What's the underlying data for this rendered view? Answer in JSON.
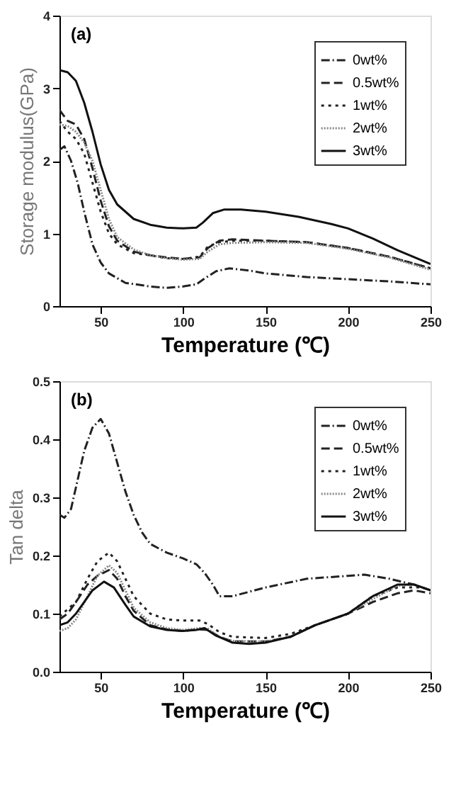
{
  "chart_data": [
    {
      "type": "line",
      "annotations": [
        "(a)"
      ],
      "xlabel": "Temperature (℃)",
      "ylabel": "Storage modulus(GPa)",
      "xlim": [
        25,
        250
      ],
      "xticks": [
        50,
        100,
        150,
        200,
        250
      ],
      "ylim": [
        0,
        4
      ],
      "yticks": [
        0,
        1,
        2,
        3,
        4
      ],
      "grid": false,
      "legend": "top right",
      "series": [
        {
          "name": "0wt%",
          "color": "#222222",
          "line_style": "dashdot",
          "x": [
            25,
            28,
            32,
            36,
            40,
            45,
            50,
            55,
            65,
            80,
            90,
            100,
            108,
            113,
            120,
            128,
            140,
            150,
            175,
            200,
            225,
            250
          ],
          "values": [
            2.15,
            2.2,
            2.0,
            1.7,
            1.3,
            0.85,
            0.6,
            0.45,
            0.32,
            0.27,
            0.25,
            0.27,
            0.3,
            0.38,
            0.48,
            0.52,
            0.49,
            0.45,
            0.4,
            0.37,
            0.34,
            0.3
          ]
        },
        {
          "name": "0.5wt%",
          "color": "#222222",
          "line_style": "dashed",
          "x": [
            25,
            30,
            35,
            40,
            45,
            50,
            55,
            60,
            70,
            80,
            90,
            100,
            110,
            115,
            122,
            130,
            150,
            175,
            200,
            225,
            250
          ],
          "values": [
            2.7,
            2.55,
            2.5,
            2.3,
            1.9,
            1.45,
            1.1,
            0.9,
            0.75,
            0.7,
            0.67,
            0.65,
            0.67,
            0.8,
            0.9,
            0.92,
            0.9,
            0.88,
            0.8,
            0.68,
            0.52
          ]
        },
        {
          "name": "1wt%",
          "color": "#222222",
          "line_style": "dotted",
          "x": [
            25,
            30,
            35,
            40,
            45,
            50,
            55,
            60,
            70,
            80,
            90,
            100,
            110,
            115,
            122,
            130,
            150,
            175,
            200,
            225,
            250
          ],
          "values": [
            2.55,
            2.4,
            2.3,
            2.1,
            1.7,
            1.3,
            1.0,
            0.85,
            0.73,
            0.7,
            0.66,
            0.65,
            0.68,
            0.82,
            0.88,
            0.9,
            0.9,
            0.88,
            0.8,
            0.68,
            0.52
          ]
        },
        {
          "name": "2wt%",
          "color": "#888888",
          "line_style": "finedot",
          "x": [
            25,
            30,
            35,
            40,
            45,
            50,
            55,
            60,
            70,
            80,
            90,
            100,
            110,
            115,
            122,
            130,
            150,
            175,
            200,
            225,
            250
          ],
          "values": [
            2.5,
            2.48,
            2.4,
            2.25,
            2.0,
            1.6,
            1.2,
            0.95,
            0.78,
            0.7,
            0.66,
            0.64,
            0.65,
            0.75,
            0.85,
            0.87,
            0.88,
            0.87,
            0.79,
            0.67,
            0.5
          ]
        },
        {
          "name": "3wt%",
          "color": "#111111",
          "line_style": "solid",
          "x": [
            25,
            30,
            35,
            40,
            45,
            50,
            55,
            60,
            70,
            80,
            90,
            100,
            108,
            112,
            118,
            125,
            135,
            150,
            170,
            190,
            200,
            215,
            230,
            250
          ],
          "values": [
            3.25,
            3.22,
            3.1,
            2.8,
            2.4,
            1.95,
            1.6,
            1.4,
            1.2,
            1.12,
            1.08,
            1.07,
            1.08,
            1.15,
            1.28,
            1.33,
            1.33,
            1.3,
            1.23,
            1.13,
            1.07,
            0.93,
            0.77,
            0.58
          ]
        }
      ]
    },
    {
      "type": "line",
      "annotations": [
        "(b)"
      ],
      "xlabel": "Temperature (℃)",
      "ylabel": "Tan delta",
      "xlim": [
        25,
        250
      ],
      "xticks": [
        50,
        100,
        150,
        200,
        250
      ],
      "ylim": [
        0,
        0.5
      ],
      "yticks": [
        {
          "value": 0,
          "label": "0.0"
        },
        0.1,
        0.2,
        0.3,
        0.4,
        0.5
      ],
      "grid": false,
      "legend": "top right",
      "series": [
        {
          "name": "0wt%",
          "color": "#222222",
          "line_style": "dashdot",
          "x": [
            25,
            28,
            32,
            36,
            40,
            45,
            50,
            55,
            60,
            65,
            70,
            75,
            80,
            90,
            100,
            108,
            113,
            118,
            122,
            130,
            150,
            175,
            200,
            210,
            225,
            240,
            250
          ],
          "values": [
            0.27,
            0.265,
            0.28,
            0.33,
            0.38,
            0.42,
            0.435,
            0.41,
            0.36,
            0.31,
            0.27,
            0.24,
            0.22,
            0.205,
            0.195,
            0.185,
            0.17,
            0.15,
            0.13,
            0.13,
            0.145,
            0.16,
            0.165,
            0.167,
            0.16,
            0.15,
            0.14
          ]
        },
        {
          "name": "0.5wt%",
          "color": "#222222",
          "line_style": "dashed",
          "x": [
            25,
            30,
            35,
            42,
            48,
            55,
            60,
            65,
            70,
            80,
            90,
            100,
            110,
            115,
            122,
            130,
            150,
            165,
            180,
            200,
            215,
            230,
            240,
            250
          ],
          "values": [
            0.09,
            0.1,
            0.12,
            0.15,
            0.165,
            0.175,
            0.16,
            0.13,
            0.105,
            0.08,
            0.073,
            0.07,
            0.073,
            0.072,
            0.06,
            0.052,
            0.052,
            0.06,
            0.08,
            0.1,
            0.12,
            0.135,
            0.14,
            0.135
          ]
        },
        {
          "name": "1wt%",
          "color": "#222222",
          "line_style": "dotted",
          "x": [
            25,
            35,
            42,
            48,
            55,
            60,
            65,
            70,
            80,
            90,
            100,
            110,
            115,
            122,
            130,
            150,
            165,
            180,
            200,
            215,
            230,
            245,
            250
          ],
          "values": [
            0.095,
            0.12,
            0.16,
            0.19,
            0.205,
            0.19,
            0.16,
            0.13,
            0.1,
            0.09,
            0.088,
            0.088,
            0.082,
            0.068,
            0.06,
            0.058,
            0.065,
            0.08,
            0.1,
            0.13,
            0.145,
            0.145,
            0.14
          ]
        },
        {
          "name": "2wt%",
          "color": "#888888",
          "line_style": "finedot",
          "x": [
            25,
            30,
            35,
            42,
            48,
            55,
            60,
            65,
            70,
            80,
            90,
            100,
            110,
            115,
            122,
            130,
            150,
            165,
            180,
            200,
            215,
            230,
            240,
            250
          ],
          "values": [
            0.07,
            0.075,
            0.09,
            0.13,
            0.165,
            0.183,
            0.17,
            0.14,
            0.11,
            0.085,
            0.075,
            0.072,
            0.075,
            0.074,
            0.06,
            0.053,
            0.052,
            0.06,
            0.08,
            0.1,
            0.125,
            0.148,
            0.15,
            0.14
          ]
        },
        {
          "name": "3wt%",
          "color": "#111111",
          "line_style": "solid",
          "x": [
            25,
            30,
            35,
            40,
            45,
            52,
            58,
            65,
            70,
            80,
            90,
            100,
            108,
            113,
            120,
            130,
            140,
            150,
            165,
            180,
            200,
            215,
            230,
            240,
            250
          ],
          "values": [
            0.08,
            0.085,
            0.1,
            0.12,
            0.14,
            0.155,
            0.145,
            0.115,
            0.095,
            0.078,
            0.072,
            0.07,
            0.072,
            0.075,
            0.062,
            0.05,
            0.048,
            0.05,
            0.06,
            0.08,
            0.1,
            0.13,
            0.15,
            0.15,
            0.14
          ]
        }
      ]
    }
  ]
}
